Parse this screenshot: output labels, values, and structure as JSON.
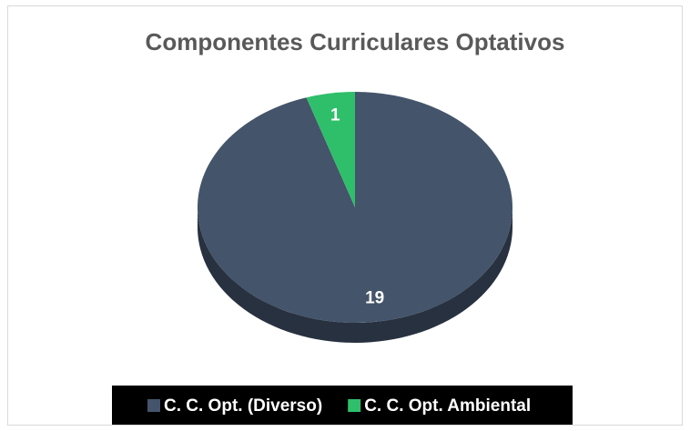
{
  "chart_data": {
    "type": "pie",
    "title": "Componentes Curriculares Optativos",
    "categories": [
      "C. C. Opt. (Diverso)",
      "C. C. Opt. Ambiental"
    ],
    "values": [
      19,
      1
    ],
    "colors": [
      "#44546a",
      "#2fbf6a"
    ],
    "legend": "bottom"
  }
}
